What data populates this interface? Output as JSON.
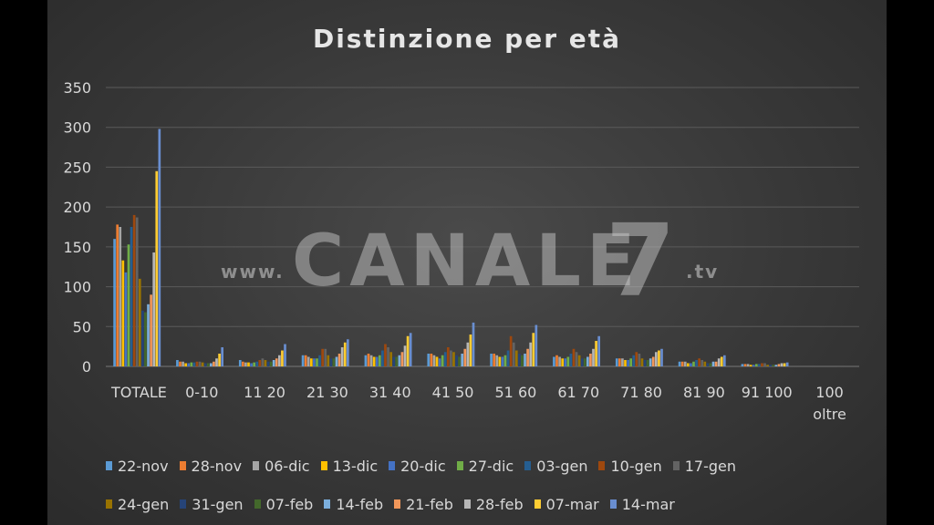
{
  "chart_data": {
    "type": "bar",
    "title": "Distinzione  per età",
    "ylim": [
      0,
      350
    ],
    "yticks": [
      "0",
      "50",
      "100",
      "150",
      "200",
      "250",
      "300",
      "350"
    ],
    "grid": true,
    "legend_placement": "bottom",
    "categories": [
      "TOTALE",
      "0-10",
      "11 20",
      "21 30",
      "31 40",
      "41 50",
      "51 60",
      "61 70",
      "71 80",
      "81 90",
      "91 100",
      "100 oltre"
    ],
    "series": [
      {
        "name": "22-nov",
        "color": "#5b9bd5",
        "values": [
          160,
          8,
          8,
          14,
          14,
          16,
          16,
          12,
          10,
          6,
          3,
          0
        ]
      },
      {
        "name": "28-nov",
        "color": "#ed7d31",
        "values": [
          178,
          6,
          6,
          14,
          16,
          16,
          16,
          14,
          10,
          6,
          3,
          0
        ]
      },
      {
        "name": "06-dic",
        "color": "#a5a5a5",
        "values": [
          175,
          6,
          5,
          12,
          14,
          14,
          14,
          12,
          10,
          6,
          3,
          0
        ]
      },
      {
        "name": "13-dic",
        "color": "#ffc000",
        "values": [
          133,
          4,
          5,
          10,
          12,
          12,
          12,
          10,
          8,
          4,
          2,
          0
        ]
      },
      {
        "name": "20-dic",
        "color": "#4472c4",
        "values": [
          118,
          4,
          4,
          10,
          12,
          10,
          12,
          10,
          8,
          4,
          2,
          0
        ]
      },
      {
        "name": "27-dic",
        "color": "#70ad47",
        "values": [
          153,
          5,
          5,
          10,
          14,
          14,
          14,
          12,
          10,
          6,
          3,
          0
        ]
      },
      {
        "name": "03-gen",
        "color": "#255e91",
        "values": [
          175,
          5,
          6,
          14,
          20,
          18,
          20,
          16,
          14,
          8,
          3,
          0
        ]
      },
      {
        "name": "10-gen",
        "color": "#9e480e",
        "values": [
          190,
          6,
          8,
          22,
          28,
          24,
          38,
          22,
          18,
          10,
          4,
          0
        ]
      },
      {
        "name": "17-gen",
        "color": "#636363",
        "values": [
          187,
          6,
          10,
          22,
          24,
          20,
          30,
          18,
          16,
          8,
          4,
          0
        ]
      },
      {
        "name": "24-gen",
        "color": "#997300",
        "values": [
          110,
          5,
          8,
          14,
          18,
          18,
          20,
          14,
          10,
          6,
          2,
          0
        ]
      },
      {
        "name": "31-gen",
        "color": "#264478",
        "values": [
          70,
          4,
          6,
          10,
          12,
          14,
          16,
          10,
          8,
          4,
          2,
          0
        ]
      },
      {
        "name": "07-feb",
        "color": "#43682b",
        "values": [
          68,
          4,
          6,
          10,
          12,
          12,
          14,
          10,
          8,
          4,
          2,
          0
        ]
      },
      {
        "name": "14-feb",
        "color": "#7cafdd",
        "values": [
          78,
          4,
          8,
          12,
          14,
          16,
          16,
          12,
          10,
          6,
          2,
          0
        ]
      },
      {
        "name": "21-feb",
        "color": "#f1975a",
        "values": [
          90,
          6,
          10,
          16,
          18,
          22,
          22,
          16,
          12,
          6,
          3,
          0
        ]
      },
      {
        "name": "28-feb",
        "color": "#b7b7b7",
        "values": [
          143,
          10,
          14,
          24,
          26,
          30,
          30,
          22,
          18,
          10,
          4,
          0
        ]
      },
      {
        "name": "07-mar",
        "color": "#ffcd33",
        "values": [
          245,
          16,
          20,
          30,
          38,
          40,
          42,
          32,
          20,
          12,
          4,
          0
        ]
      },
      {
        "name": "14-mar",
        "color": "#698ed0",
        "values": [
          298,
          24,
          28,
          34,
          42,
          55,
          52,
          38,
          22,
          14,
          5,
          0
        ]
      }
    ]
  },
  "watermark": {
    "prefix": "www.",
    "brand": "CANALE",
    "number": "7",
    "suffix": ".tv"
  },
  "colors": {
    "background": "#383838",
    "grid": "#5a5a5a",
    "text": "#d8d8d8"
  }
}
